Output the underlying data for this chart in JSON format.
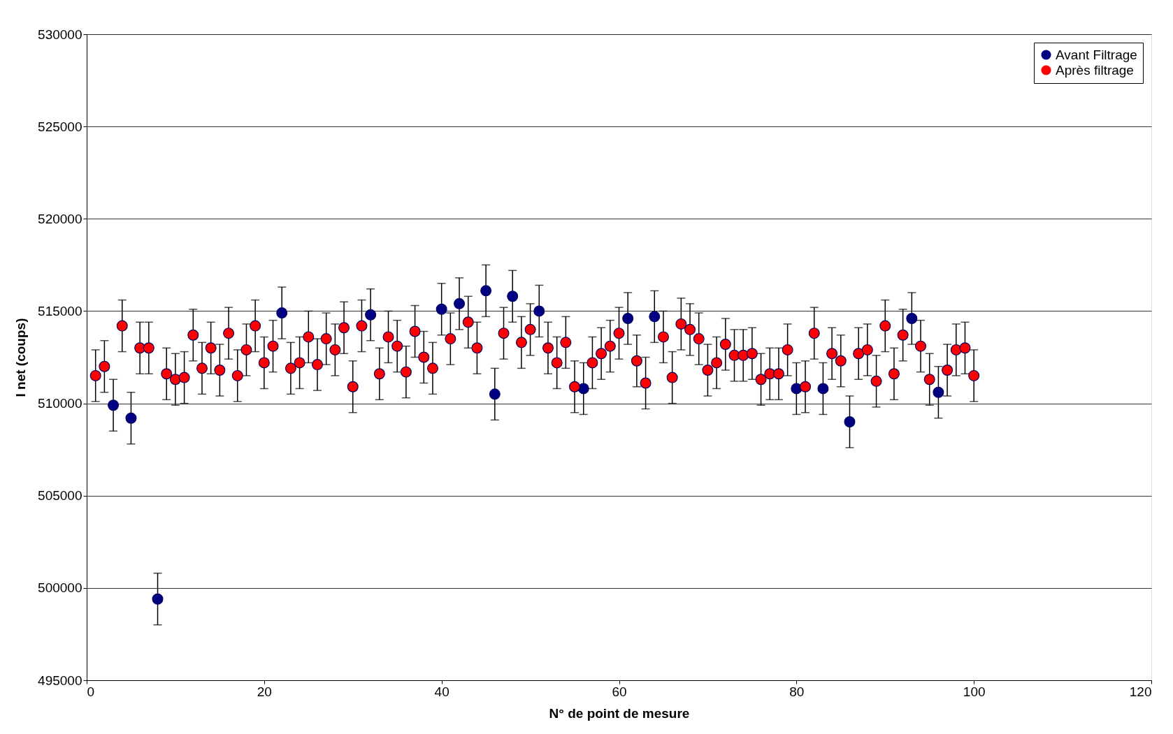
{
  "chart_data": {
    "type": "scatter",
    "xlabel": "N° de point de mesure",
    "ylabel": "I net (coups)",
    "x": [
      1,
      2,
      3,
      4,
      5,
      6,
      7,
      8,
      9,
      10,
      11,
      12,
      13,
      14,
      15,
      16,
      17,
      18,
      19,
      20,
      21,
      22,
      23,
      24,
      25,
      26,
      27,
      28,
      29,
      30,
      31,
      32,
      33,
      34,
      35,
      36,
      37,
      38,
      39,
      40,
      41,
      42,
      43,
      44,
      45,
      46,
      47,
      48,
      49,
      50,
      51,
      52,
      53,
      54,
      55,
      56,
      57,
      58,
      59,
      60,
      61,
      62,
      63,
      64,
      65,
      66,
      67,
      68,
      69,
      70,
      71,
      72,
      73,
      74,
      75,
      76,
      77,
      78,
      79,
      80,
      81,
      82,
      83,
      84,
      85,
      86,
      87,
      88,
      89,
      90,
      91,
      92,
      93,
      94,
      95,
      96,
      97,
      98,
      99,
      100
    ],
    "series": [
      {
        "name": "Avant Filtrage",
        "color": "#000080",
        "values": [
          null,
          null,
          509900,
          null,
          509200,
          null,
          null,
          499400,
          null,
          null,
          null,
          null,
          null,
          null,
          null,
          null,
          null,
          null,
          null,
          null,
          null,
          514900,
          null,
          null,
          null,
          null,
          null,
          null,
          null,
          null,
          null,
          514800,
          null,
          null,
          null,
          null,
          null,
          null,
          null,
          515100,
          null,
          515400,
          null,
          null,
          516100,
          510500,
          null,
          515800,
          null,
          null,
          515000,
          null,
          null,
          null,
          null,
          510800,
          null,
          null,
          null,
          null,
          514600,
          null,
          null,
          514700,
          null,
          null,
          null,
          null,
          null,
          null,
          null,
          null,
          null,
          null,
          null,
          null,
          null,
          null,
          null,
          510800,
          null,
          null,
          510800,
          null,
          null,
          509000,
          null,
          null,
          null,
          null,
          null,
          null,
          514600,
          null,
          null,
          510600,
          null,
          null,
          null,
          null
        ],
        "errors": [
          null,
          null,
          1400,
          null,
          1400,
          null,
          null,
          1400,
          null,
          null,
          null,
          null,
          null,
          null,
          null,
          null,
          null,
          null,
          null,
          null,
          null,
          1400,
          null,
          null,
          null,
          null,
          null,
          null,
          null,
          null,
          null,
          1400,
          null,
          null,
          null,
          null,
          null,
          null,
          null,
          1400,
          null,
          1400,
          null,
          null,
          1400,
          1400,
          null,
          1400,
          null,
          null,
          1400,
          null,
          null,
          null,
          null,
          1400,
          null,
          null,
          null,
          null,
          1400,
          null,
          null,
          1400,
          null,
          null,
          null,
          null,
          null,
          null,
          null,
          null,
          null,
          null,
          null,
          null,
          null,
          null,
          null,
          1400,
          null,
          null,
          1400,
          null,
          null,
          1400,
          null,
          null,
          null,
          null,
          null,
          null,
          1400,
          null,
          null,
          1400,
          null,
          null,
          null,
          null
        ]
      },
      {
        "name": "Après filtrage",
        "color": "#ff0000",
        "values": [
          511500,
          512000,
          null,
          514200,
          null,
          513000,
          513000,
          null,
          511600,
          511300,
          511400,
          513700,
          511900,
          513000,
          511800,
          513800,
          511500,
          512900,
          514200,
          512200,
          513100,
          null,
          511900,
          512200,
          513600,
          512100,
          513500,
          512900,
          514100,
          510900,
          514200,
          null,
          511600,
          513600,
          513100,
          511700,
          513900,
          512500,
          511900,
          null,
          513500,
          null,
          514400,
          513000,
          null,
          null,
          513800,
          null,
          513300,
          514000,
          null,
          513000,
          512200,
          513300,
          510900,
          null,
          512200,
          512700,
          513100,
          513800,
          null,
          512300,
          511100,
          null,
          513600,
          511400,
          514300,
          514000,
          513500,
          511800,
          512200,
          513200,
          512600,
          512600,
          512700,
          511300,
          511600,
          511600,
          512900,
          null,
          510900,
          513800,
          null,
          512700,
          512300,
          null,
          512700,
          512900,
          511200,
          514200,
          511600,
          513700,
          null,
          513100,
          511300,
          null,
          511800,
          512900,
          513000,
          511500
        ],
        "errors": [
          1400,
          1400,
          null,
          1400,
          null,
          1400,
          1400,
          null,
          1400,
          1400,
          1400,
          1400,
          1400,
          1400,
          1400,
          1400,
          1400,
          1400,
          1400,
          1400,
          1400,
          null,
          1400,
          1400,
          1400,
          1400,
          1400,
          1400,
          1400,
          1400,
          1400,
          null,
          1400,
          1400,
          1400,
          1400,
          1400,
          1400,
          1400,
          null,
          1400,
          null,
          1400,
          1400,
          null,
          null,
          1400,
          null,
          1400,
          1400,
          null,
          1400,
          1400,
          1400,
          1400,
          null,
          1400,
          1400,
          1400,
          1400,
          null,
          1400,
          1400,
          null,
          1400,
          1400,
          1400,
          1400,
          1400,
          1400,
          1400,
          1400,
          1400,
          1400,
          1400,
          1400,
          1400,
          1400,
          1400,
          null,
          1400,
          1400,
          null,
          1400,
          1400,
          null,
          1400,
          1400,
          1400,
          1400,
          1400,
          1400,
          null,
          1400,
          1400,
          null,
          1400,
          1400,
          1400,
          1400
        ]
      }
    ],
    "xlim": [
      0,
      120
    ],
    "ylim": [
      495000,
      530000
    ],
    "xticks": [
      0,
      20,
      40,
      60,
      80,
      100,
      120
    ],
    "yticks": [
      495000,
      500000,
      505000,
      510000,
      515000,
      520000,
      525000,
      530000
    ],
    "grid": "y",
    "legend": "top right",
    "marker": "circle"
  }
}
